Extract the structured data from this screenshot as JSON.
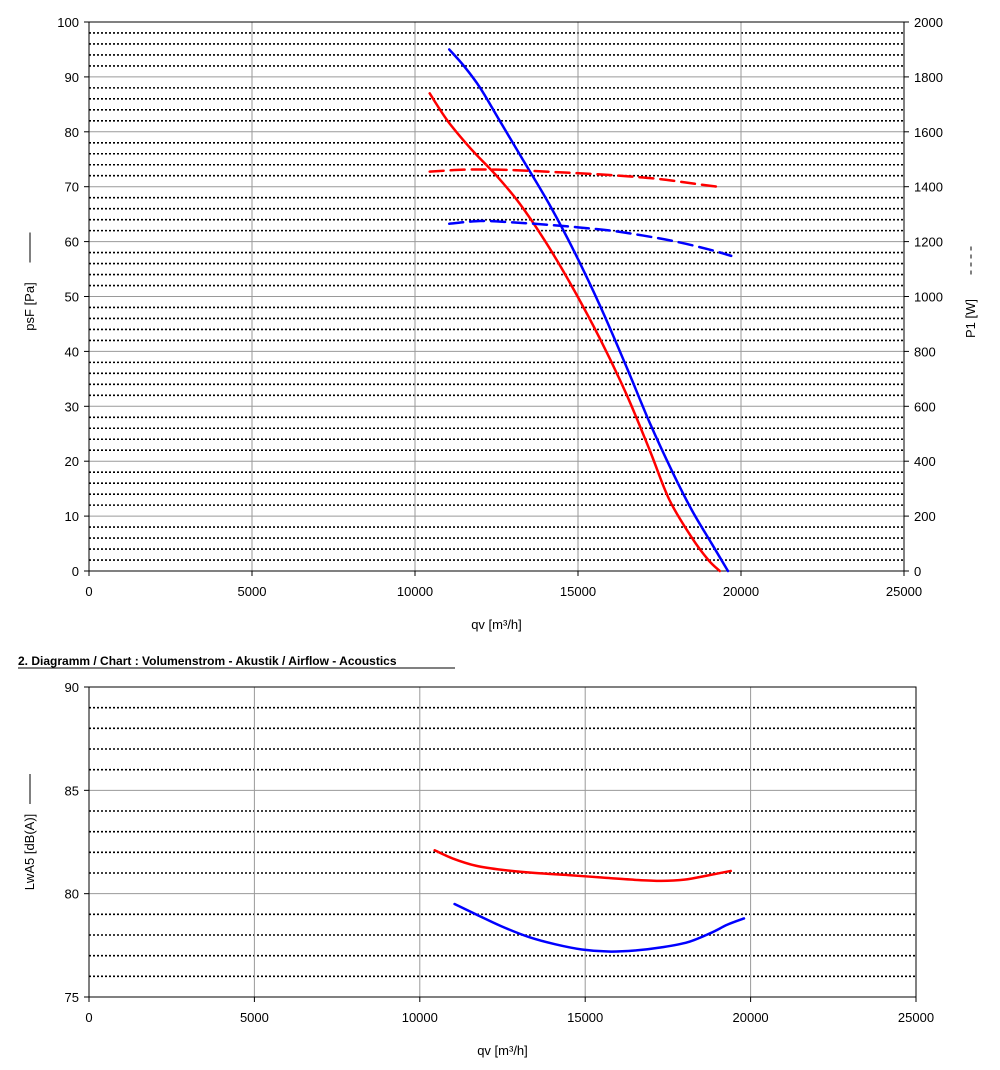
{
  "chart_data": [
    {
      "type": "line",
      "title": "",
      "xlabel": "qv [m³/h]",
      "ylabel": "psF [Pa]",
      "ylabel_right": "P1 [W]",
      "xlim": [
        0,
        25000
      ],
      "ylim": [
        0,
        100
      ],
      "ylim_right": [
        0,
        2000
      ],
      "x_ticks": [
        0,
        5000,
        10000,
        15000,
        20000,
        25000
      ],
      "y_ticks": [
        0,
        10,
        20,
        30,
        40,
        50,
        60,
        70,
        80,
        90,
        100
      ],
      "y_ticks_right": [
        0,
        200,
        400,
        600,
        800,
        1000,
        1200,
        1400,
        1600,
        1800,
        2000
      ],
      "grid": true,
      "series": [
        {
          "color": "#ff0000",
          "style": "solid",
          "axis": "left",
          "x": [
            10450,
            11000,
            11700,
            12500,
            13200,
            14000,
            14800,
            15700,
            16500,
            17200,
            17800,
            18500,
            19000,
            19350
          ],
          "y": [
            87,
            82,
            77,
            72,
            67,
            60,
            52,
            42,
            32,
            22,
            13,
            6,
            2,
            0
          ]
        },
        {
          "color": "#0000ff",
          "style": "solid",
          "axis": "left",
          "x": [
            11050,
            11500,
            12000,
            12600,
            13300,
            14100,
            14900,
            15700,
            16500,
            17200,
            17900,
            18500,
            19100,
            19600
          ],
          "y": [
            95,
            92,
            88,
            82,
            75,
            67,
            58,
            48,
            37,
            27,
            18,
            11,
            5,
            0
          ]
        },
        {
          "color": "#ff0000",
          "style": "dashed",
          "axis": "right",
          "x": [
            10450,
            11500,
            12500,
            13500,
            14500,
            15500,
            16500,
            17500,
            18500,
            19400
          ],
          "y": [
            1455,
            1462,
            1462,
            1458,
            1452,
            1446,
            1438,
            1428,
            1412,
            1398
          ]
        },
        {
          "color": "#0000ff",
          "style": "dashed",
          "axis": "right",
          "x": [
            11050,
            12000,
            13000,
            14000,
            15000,
            16000,
            17000,
            18000,
            19000,
            19700
          ],
          "y": [
            1265,
            1275,
            1270,
            1262,
            1252,
            1240,
            1222,
            1200,
            1172,
            1148
          ]
        }
      ]
    },
    {
      "type": "line",
      "title": "2. Diagramm / Chart :   Volumenstrom - Akustik / Airflow - Acoustics",
      "xlabel": "qv [m³/h]",
      "ylabel": "LwA5 [dB(A)]",
      "xlim": [
        0,
        25000
      ],
      "ylim": [
        75,
        90
      ],
      "x_ticks": [
        0,
        5000,
        10000,
        15000,
        20000,
        25000
      ],
      "y_ticks": [
        75,
        80,
        85,
        90
      ],
      "grid": true,
      "series": [
        {
          "color": "#ff0000",
          "style": "solid",
          "x": [
            10450,
            11000,
            11700,
            12500,
            13500,
            14500,
            15500,
            16500,
            17300,
            18000,
            18700,
            19400
          ],
          "y": [
            82.1,
            81.7,
            81.35,
            81.15,
            81.0,
            80.9,
            80.78,
            80.67,
            80.62,
            80.68,
            80.88,
            81.1
          ]
        },
        {
          "color": "#0000ff",
          "style": "solid",
          "x": [
            11050,
            11700,
            12500,
            13300,
            14100,
            14900,
            15700,
            16500,
            17300,
            18100,
            18800,
            19300,
            19800
          ],
          "y": [
            79.5,
            79.0,
            78.4,
            77.9,
            77.55,
            77.3,
            77.2,
            77.25,
            77.4,
            77.65,
            78.1,
            78.5,
            78.8
          ]
        }
      ]
    }
  ]
}
